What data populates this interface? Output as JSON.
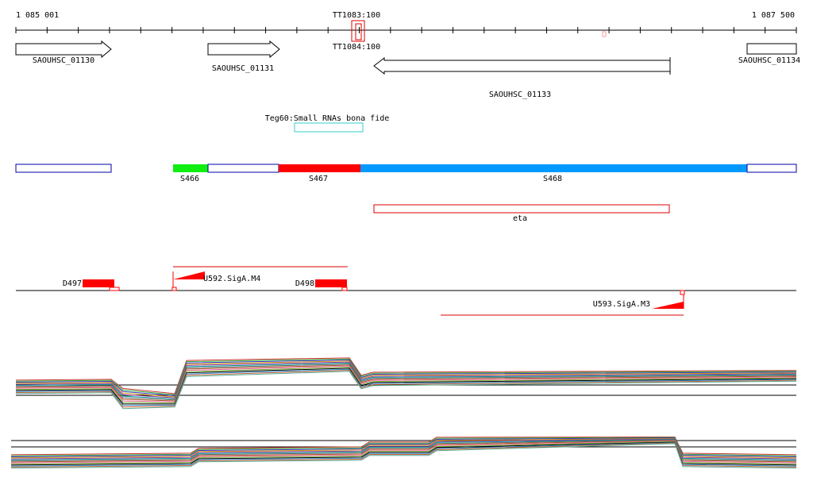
{
  "ruler": {
    "start": "1 085 001",
    "end": "1 087 500",
    "probe_top": "TT1083:100",
    "probe_bottom": "TT1084:100"
  },
  "genes": [
    "SAOUHSC_01130",
    "SAOUHSC_01131",
    "SAOUHSC_01133",
    "SAOUHSC_01134"
  ],
  "srna": "Teg60:Small RNAs bona fide",
  "segments": [
    "S466",
    "S467",
    "S468"
  ],
  "region": "eta",
  "signals": [
    "D497",
    "U592.SigA.M4",
    "D498",
    "U593.SigA.M3"
  ]
}
